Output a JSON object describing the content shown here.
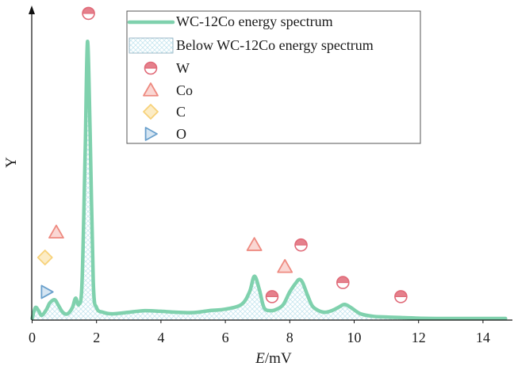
{
  "chart_data": {
    "type": "line",
    "title": "",
    "ylabel": "Y",
    "xlabel_italic": "E",
    "xlabel_unit": "/mV",
    "xlim": [
      0,
      15
    ],
    "ylim": [
      0,
      1
    ],
    "xticks": [
      0,
      2,
      4,
      6,
      8,
      10,
      12,
      14
    ],
    "legend_position": "top-right",
    "grid": false,
    "colors": {
      "spectrum": "#7fd1ad",
      "fill_hatch": "#c6e6f0",
      "W": "#e06a78",
      "Co": "#ee8a80",
      "C": "#f7d27a",
      "O": "#6aa0cc"
    },
    "legend": [
      {
        "key": "spectrum",
        "label": "WC-12Co energy spectrum",
        "kind": "line"
      },
      {
        "key": "fill",
        "label": "Below WC-12Co energy spectrum",
        "kind": "hatch"
      },
      {
        "key": "W",
        "label": "W",
        "kind": "half-circle"
      },
      {
        "key": "Co",
        "label": "Co",
        "kind": "triangle"
      },
      {
        "key": "C",
        "label": "C",
        "kind": "diamond"
      },
      {
        "key": "O",
        "label": "O",
        "kind": "right-triangle"
      }
    ],
    "series": [
      {
        "name": "WC-12Co energy spectrum",
        "x": [
          0,
          0.1,
          0.2,
          0.3,
          0.45,
          0.55,
          0.7,
          0.8,
          0.95,
          1.1,
          1.25,
          1.35,
          1.45,
          1.55,
          1.65,
          1.72,
          1.8,
          1.9,
          2.0,
          2.2,
          2.5,
          3.0,
          3.5,
          4.0,
          4.5,
          5.0,
          5.5,
          6.0,
          6.5,
          6.75,
          6.9,
          7.05,
          7.2,
          7.4,
          7.6,
          7.8,
          8.0,
          8.2,
          8.3,
          8.4,
          8.55,
          8.7,
          8.9,
          9.1,
          9.3,
          9.5,
          9.7,
          9.9,
          10.2,
          10.6,
          11.0,
          12.0,
          13.0,
          14.0,
          14.7
        ],
        "y": [
          0.005,
          0.04,
          0.03,
          0.015,
          0.035,
          0.055,
          0.065,
          0.05,
          0.025,
          0.02,
          0.04,
          0.07,
          0.05,
          0.12,
          0.55,
          0.89,
          0.6,
          0.12,
          0.04,
          0.025,
          0.02,
          0.025,
          0.03,
          0.028,
          0.025,
          0.024,
          0.03,
          0.035,
          0.05,
          0.09,
          0.14,
          0.1,
          0.04,
          0.03,
          0.035,
          0.05,
          0.09,
          0.12,
          0.13,
          0.12,
          0.08,
          0.045,
          0.03,
          0.025,
          0.03,
          0.04,
          0.05,
          0.04,
          0.02,
          0.012,
          0.01,
          0.006,
          0.005,
          0.005,
          0.005
        ]
      }
    ],
    "markers": [
      {
        "element": "W",
        "points": [
          [
            1.75,
            0.98
          ],
          [
            7.45,
            0.075
          ],
          [
            8.35,
            0.24
          ],
          [
            9.65,
            0.12
          ],
          [
            11.45,
            0.075
          ]
        ]
      },
      {
        "element": "Co",
        "points": [
          [
            0.75,
            0.28
          ],
          [
            6.9,
            0.24
          ],
          [
            7.85,
            0.17
          ]
        ]
      },
      {
        "element": "C",
        "points": [
          [
            0.4,
            0.2
          ]
        ]
      },
      {
        "element": "O",
        "points": [
          [
            0.45,
            0.09
          ]
        ]
      }
    ]
  }
}
